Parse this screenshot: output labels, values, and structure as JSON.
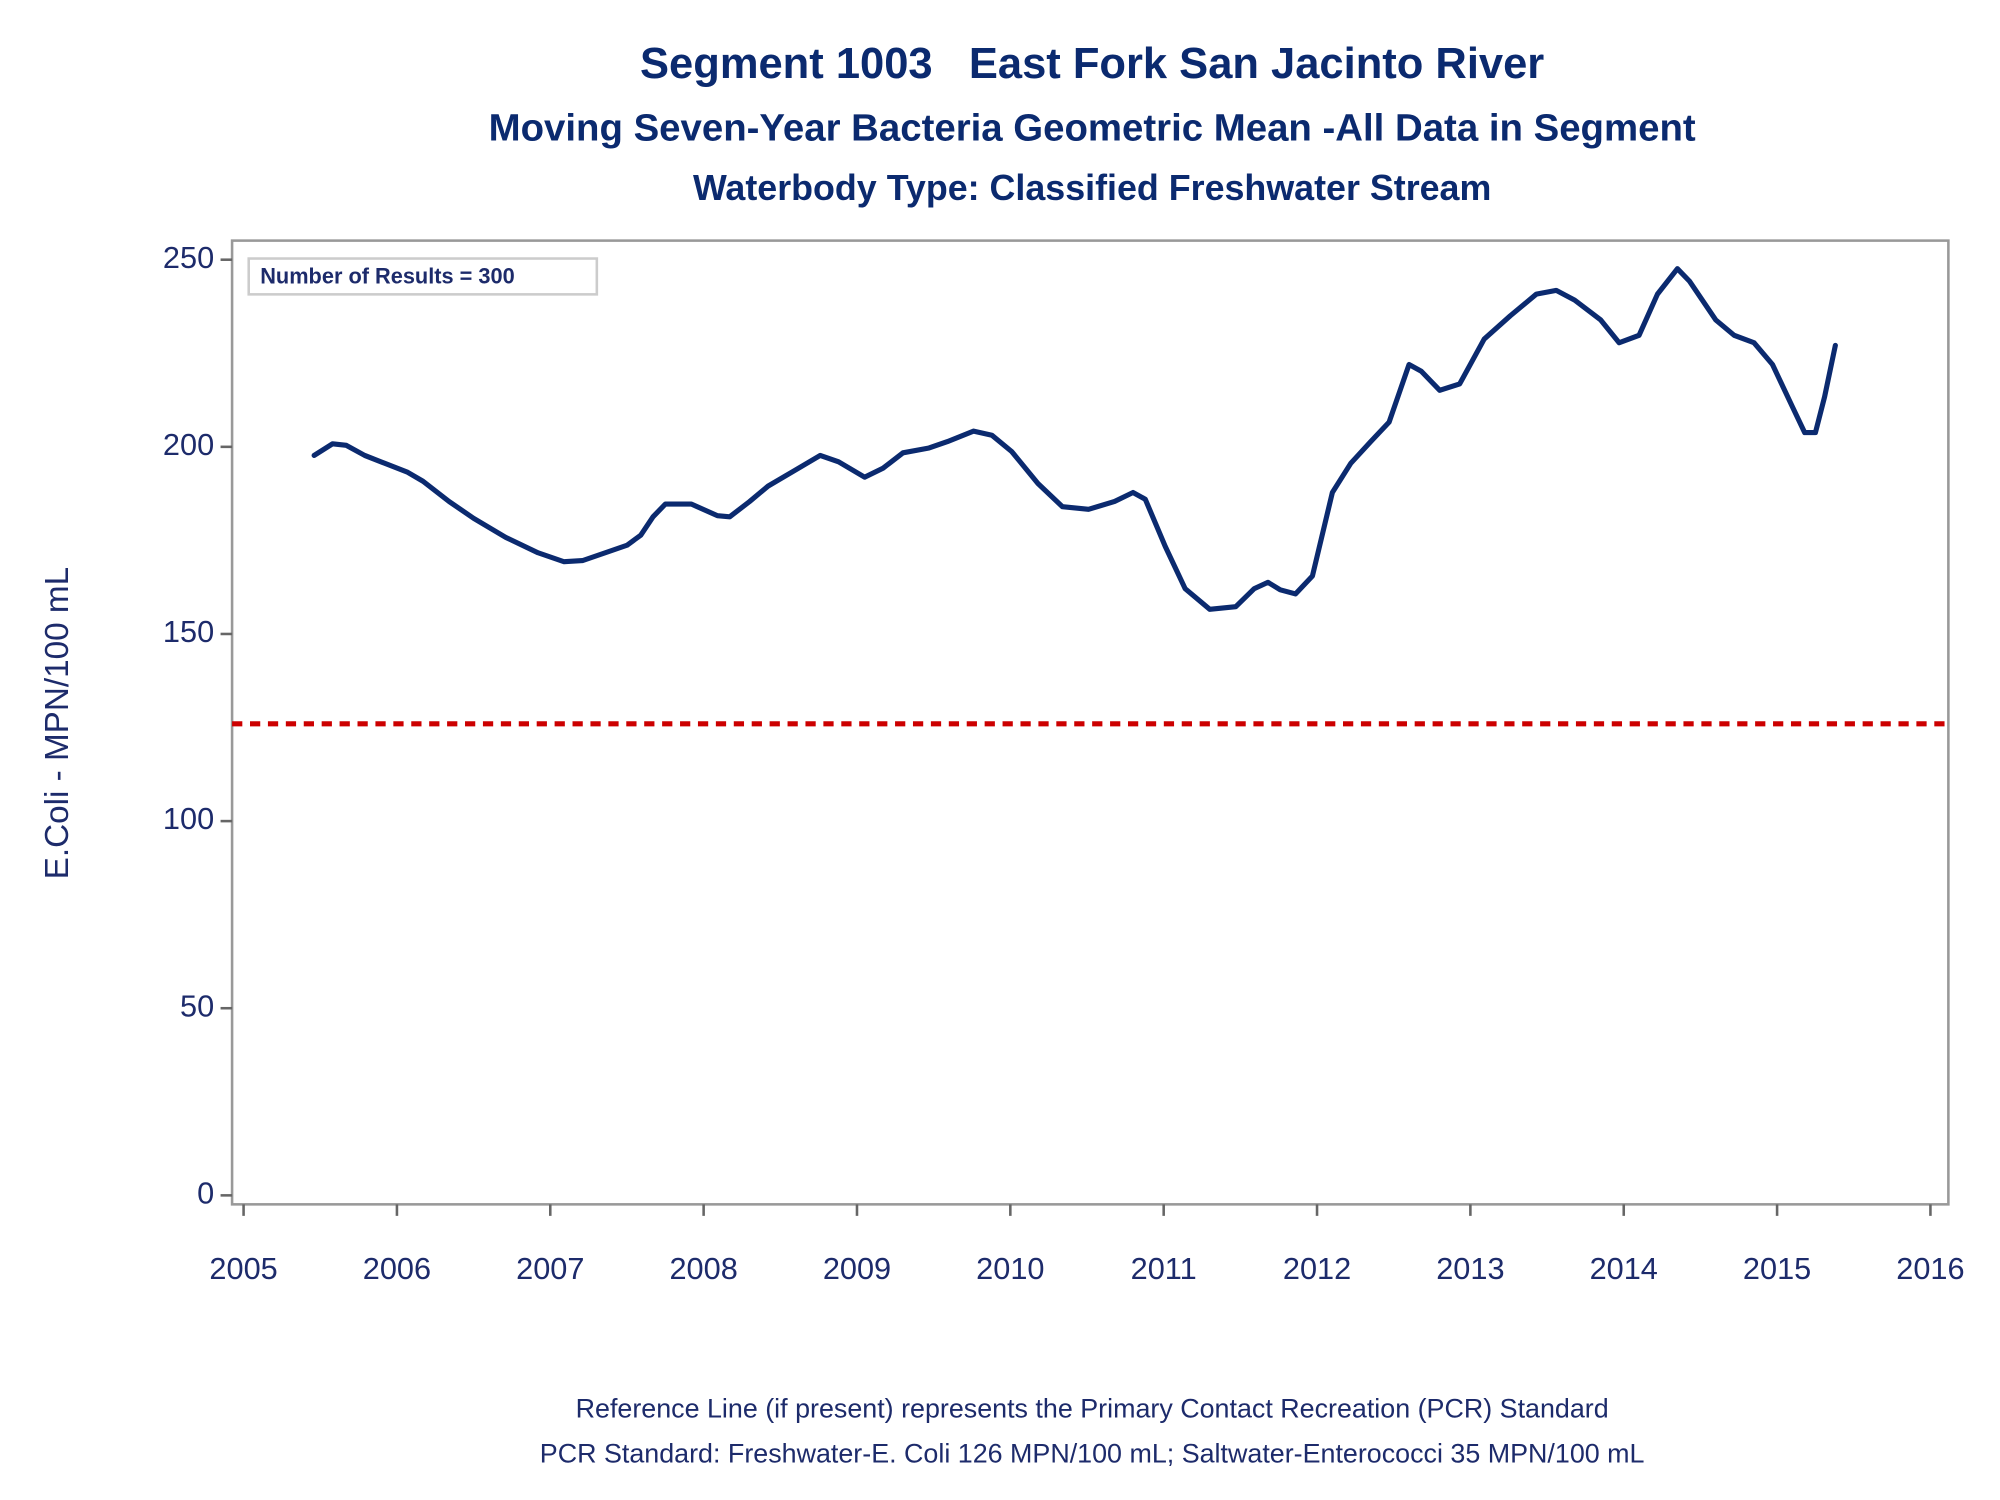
{
  "chart_data": {
    "type": "line",
    "title": "Segment 1003   East Fork San Jacinto River",
    "subtitle": "Moving Seven-Year Bacteria Geometric Mean -All Data in Segment",
    "subtitle2": "Waterbody Type: Classified Freshwater Stream",
    "ylabel": "E.Coli - MPN/100 mL",
    "annotation": "Number of Results = 300",
    "footnotes": [
      "Reference Line (if present) represents the Primary Contact Recreation (PCR) Standard",
      "PCR Standard: Freshwater-E. Coli 126 MPN/100 mL; Saltwater-Enterococci 35 MPN/100 mL"
    ],
    "xlim": [
      2004.925,
      2016.117
    ],
    "xticks": [
      2005,
      2006,
      2007,
      2008,
      2009,
      2010,
      2011,
      2012,
      2013,
      2014,
      2015,
      2016
    ],
    "ylim": [
      -2.4,
      255.1
    ],
    "yticks": [
      0,
      50,
      100,
      150,
      200,
      250
    ],
    "reference_line": {
      "value": 126,
      "color": "#cc0000"
    },
    "series": [
      {
        "color": "#0b2a6f",
        "x": [
          2005.46,
          2005.58,
          2005.67,
          2005.79,
          2005.92,
          2006.07,
          2006.17,
          2006.34,
          2006.5,
          2006.71,
          2006.92,
          2007.09,
          2007.21,
          2007.38,
          2007.5,
          2007.59,
          2007.67,
          2007.75,
          2007.92,
          2008.09,
          2008.17,
          2008.3,
          2008.42,
          2008.59,
          2008.76,
          2008.88,
          2009.05,
          2009.17,
          2009.3,
          2009.47,
          2009.59,
          2009.76,
          2009.88,
          2010.01,
          2010.18,
          2010.34,
          2010.51,
          2010.68,
          2010.8,
          2010.88,
          2011.01,
          2011.14,
          2011.3,
          2011.47,
          2011.59,
          2011.68,
          2011.76,
          2011.86,
          2011.97,
          2012.1,
          2012.22,
          2012.35,
          2012.47,
          2012.6,
          2012.68,
          2012.8,
          2012.93,
          2013.09,
          2013.26,
          2013.43,
          2013.56,
          2013.68,
          2013.85,
          2013.97,
          2014.1,
          2014.22,
          2014.35,
          2014.43,
          2014.6,
          2014.72,
          2014.85,
          2014.97,
          2015.1,
          2015.18,
          2015.25,
          2015.31,
          2015.38
        ],
        "values": [
          197.7,
          200.8,
          200.4,
          197.7,
          195.6,
          193.2,
          190.8,
          185.4,
          180.9,
          175.8,
          171.7,
          169.3,
          169.6,
          172.0,
          173.7,
          176.4,
          181.3,
          184.7,
          184.7,
          181.6,
          181.3,
          185.4,
          189.5,
          193.6,
          197.7,
          196.0,
          191.9,
          194.3,
          198.4,
          199.7,
          201.4,
          204.2,
          203.1,
          198.7,
          190.2,
          184.0,
          183.3,
          185.4,
          187.8,
          186.0,
          173.4,
          162.1,
          156.6,
          157.3,
          162.1,
          163.8,
          161.8,
          160.7,
          165.5,
          187.8,
          195.6,
          201.4,
          206.6,
          222.0,
          220.2,
          215.1,
          216.8,
          228.8,
          235.0,
          240.8,
          241.8,
          239.2,
          233.9,
          227.8,
          229.8,
          240.8,
          247.6,
          244.2,
          233.9,
          229.8,
          227.8,
          222.0,
          210.7,
          203.8,
          203.8,
          213.4,
          227.1
        ]
      }
    ]
  }
}
